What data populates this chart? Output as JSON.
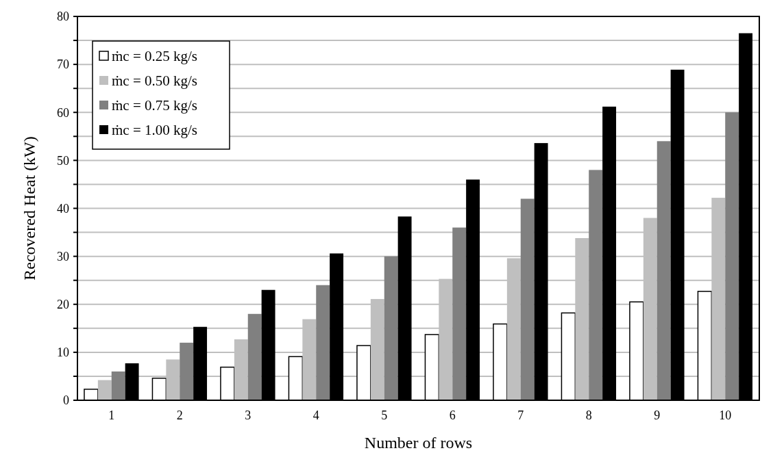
{
  "chart_data": {
    "type": "bar",
    "xlabel": "Number of rows",
    "ylabel": "Recovered Heat (kW)",
    "categories": [
      "1",
      "2",
      "3",
      "4",
      "5",
      "6",
      "7",
      "8",
      "9",
      "10"
    ],
    "series": [
      {
        "name": "ṁc = 0.25 kg/s",
        "color": "#ffffff",
        "values": [
          2.3,
          4.6,
          6.9,
          9.1,
          11.4,
          13.7,
          15.9,
          18.2,
          20.5,
          22.7
        ]
      },
      {
        "name": "ṁc = 0.50 kg/s",
        "color": "#bfbfbf",
        "values": [
          4.2,
          8.5,
          12.7,
          16.9,
          21.1,
          25.3,
          29.6,
          33.8,
          38.0,
          42.2
        ]
      },
      {
        "name": "ṁc = 0.75 kg/s",
        "color": "#808080",
        "values": [
          6,
          12,
          18,
          24,
          30,
          36,
          42,
          48,
          54,
          60
        ]
      },
      {
        "name": "ṁc = 1.00 kg/s",
        "color": "#000000",
        "values": [
          7.7,
          15.3,
          23,
          30.6,
          38.3,
          46,
          53.6,
          61.2,
          68.9,
          76.5
        ]
      }
    ],
    "ylim": [
      0,
      80
    ],
    "yticks": [
      0,
      {
        "value": 5,
        "label": null
      },
      10,
      {
        "value": 15,
        "label": null
      },
      20,
      {
        "value": 25,
        "label": null
      },
      30,
      {
        "value": 35,
        "label": null
      },
      40,
      {
        "value": 45,
        "label": null
      },
      50,
      {
        "value": 55,
        "label": null
      },
      60,
      {
        "value": 65,
        "label": null
      },
      70,
      {
        "value": 75,
        "label": null
      },
      80
    ],
    "grid": "y",
    "legend": "top left"
  }
}
